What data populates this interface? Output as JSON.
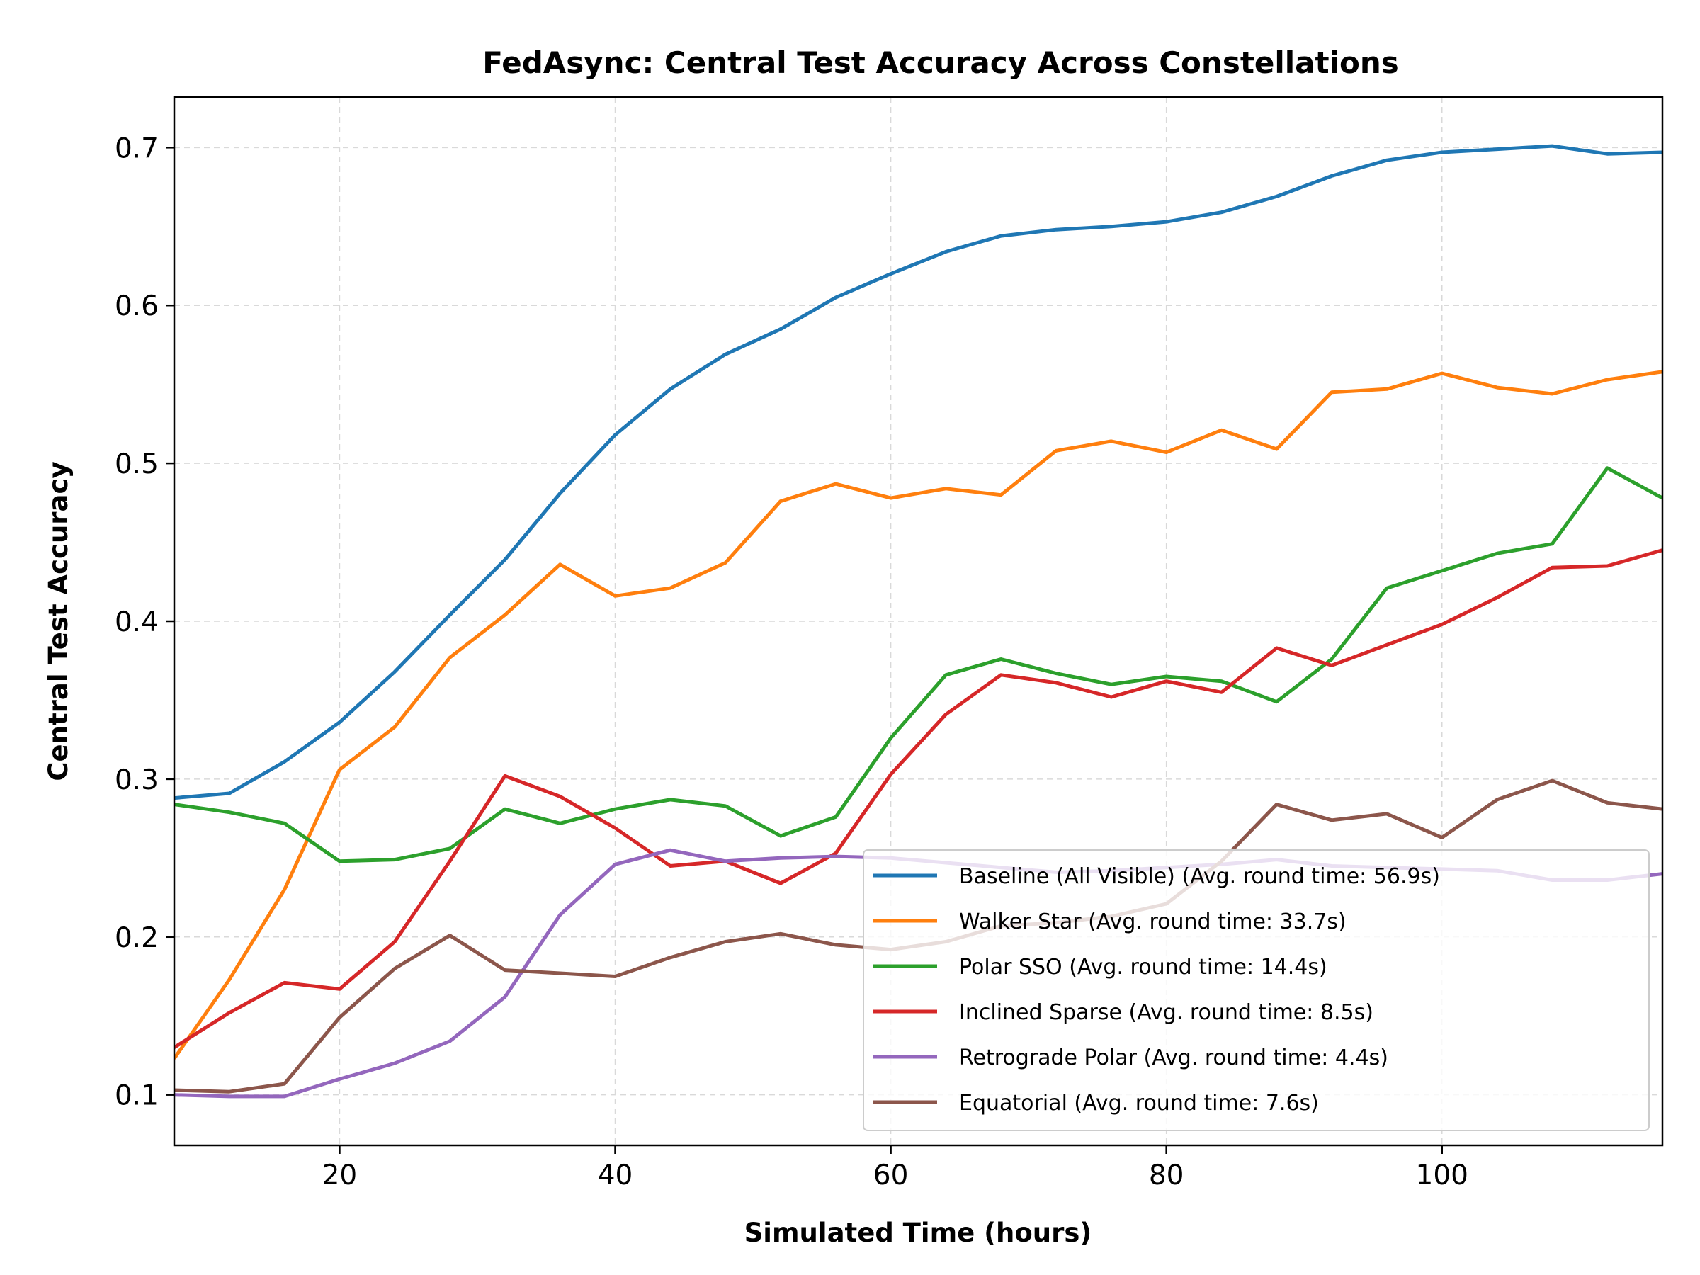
{
  "chart_data": {
    "type": "line",
    "title": "FedAsync: Central Test Accuracy Across Constellations",
    "xlabel": "Simulated Time (hours)",
    "ylabel": "Central Test Accuracy",
    "xlim": [
      8,
      116
    ],
    "ylim": [
      0.068,
      0.732
    ],
    "xticks": [
      20,
      40,
      60,
      80,
      100
    ],
    "yticks": [
      0.1,
      0.2,
      0.3,
      0.4,
      0.5,
      0.6,
      0.7
    ],
    "xtick_labels": [
      "20",
      "40",
      "60",
      "80",
      "100"
    ],
    "ytick_labels": [
      "0.1",
      "0.2",
      "0.3",
      "0.4",
      "0.5",
      "0.6",
      "0.7"
    ],
    "grid": true,
    "legend_position": "lower-right",
    "x": [
      8,
      12,
      16,
      20,
      24,
      28,
      32,
      36,
      40,
      44,
      48,
      52,
      56,
      60,
      64,
      68,
      72,
      76,
      80,
      84,
      88,
      92,
      96,
      100,
      104,
      108,
      112,
      116
    ],
    "series": [
      {
        "name": "Baseline (All Visible) (Avg. round time: 56.9s)",
        "color": "#1f77b4",
        "values": [
          0.288,
          0.291,
          0.311,
          0.336,
          0.368,
          0.404,
          0.439,
          0.481,
          0.518,
          0.547,
          0.569,
          0.585,
          0.605,
          0.62,
          0.634,
          0.644,
          0.648,
          0.65,
          0.653,
          0.659,
          0.669,
          0.682,
          0.692,
          0.697,
          0.699,
          0.701,
          0.696,
          0.697
        ]
      },
      {
        "name": "Walker Star (Avg. round time: 33.7s)",
        "color": "#ff7f0e",
        "values": [
          0.123,
          0.173,
          0.23,
          0.306,
          0.333,
          0.377,
          0.404,
          0.436,
          0.416,
          0.421,
          0.437,
          0.476,
          0.487,
          0.478,
          0.484,
          0.48,
          0.508,
          0.514,
          0.507,
          0.521,
          0.509,
          0.545,
          0.547,
          0.557,
          0.548,
          0.544,
          0.553,
          0.558
        ]
      },
      {
        "name": "Polar SSO (Avg. round time: 14.4s)",
        "color": "#2ca02c",
        "values": [
          0.284,
          0.279,
          0.272,
          0.248,
          0.249,
          0.256,
          0.281,
          0.272,
          0.281,
          0.287,
          0.283,
          0.264,
          0.276,
          0.326,
          0.366,
          0.376,
          0.367,
          0.36,
          0.365,
          0.362,
          0.349,
          0.376,
          0.421,
          0.432,
          0.443,
          0.449,
          0.497,
          0.478
        ]
      },
      {
        "name": "Inclined Sparse (Avg. round time: 8.5s)",
        "color": "#d62728",
        "values": [
          0.13,
          0.152,
          0.171,
          0.167,
          0.197,
          0.248,
          0.302,
          0.289,
          0.269,
          0.245,
          0.248,
          0.234,
          0.253,
          0.303,
          0.341,
          0.366,
          0.361,
          0.352,
          0.362,
          0.355,
          0.383,
          0.372,
          0.385,
          0.398,
          0.415,
          0.434,
          0.435,
          0.445
        ]
      },
      {
        "name": "Retrograde Polar (Avg. round time: 4.4s)",
        "color": "#9467bd",
        "values": [
          0.1,
          0.099,
          0.099,
          0.11,
          0.12,
          0.134,
          0.162,
          0.214,
          0.246,
          0.255,
          0.248,
          0.25,
          0.251,
          0.25,
          0.247,
          0.244,
          0.241,
          0.242,
          0.244,
          0.246,
          0.249,
          0.245,
          0.244,
          0.243,
          0.242,
          0.236,
          0.236,
          0.24
        ]
      },
      {
        "name": "Equatorial (Avg. round time: 7.6s)",
        "color": "#8c564b",
        "values": [
          0.103,
          0.102,
          0.107,
          0.149,
          0.18,
          0.201,
          0.179,
          0.177,
          0.175,
          0.187,
          0.197,
          0.202,
          0.195,
          0.192,
          0.197,
          0.207,
          0.209,
          0.213,
          0.221,
          0.248,
          0.284,
          0.274,
          0.278,
          0.263,
          0.287,
          0.299,
          0.285,
          0.281
        ]
      }
    ]
  }
}
